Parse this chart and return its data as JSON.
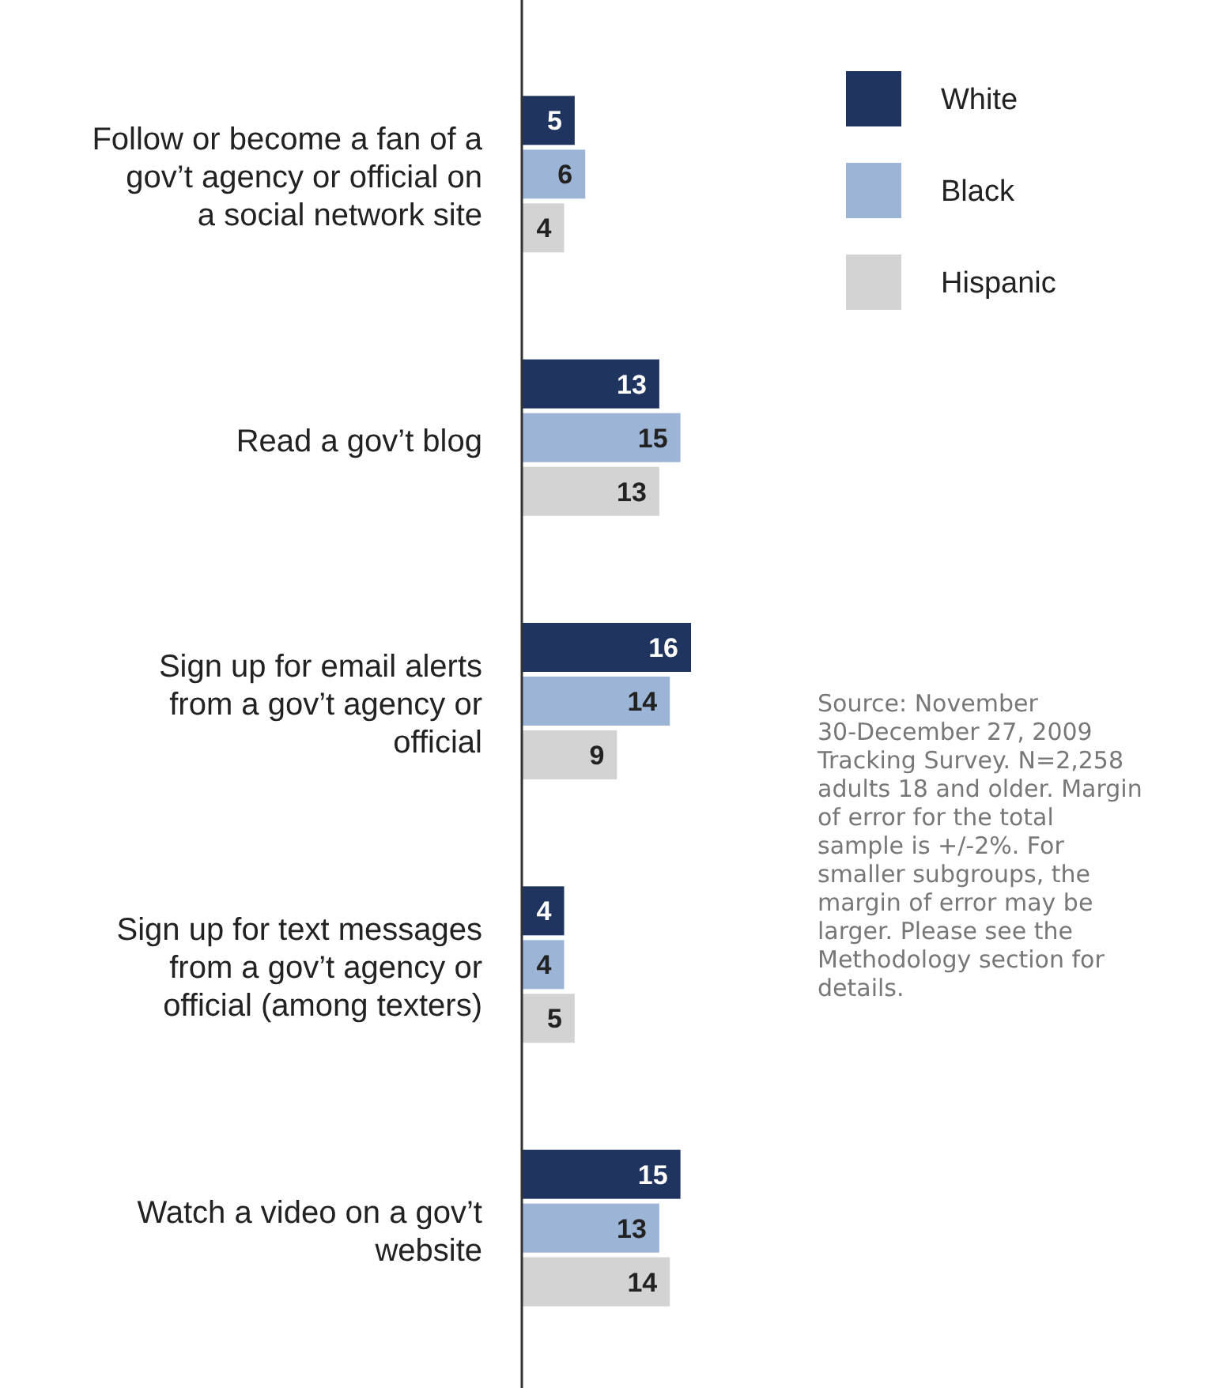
{
  "chart_data": {
    "type": "bar",
    "orientation": "horizontal",
    "categories": [
      "Follow or become a fan of a gov’t agency or official on a social network site",
      "Read a gov’t blog",
      "Sign up for email alerts from a gov’t agency or official",
      "Sign up for text messages from a gov’t agency or official (among texters)",
      "Watch a video on a gov’t website"
    ],
    "series": [
      {
        "name": "White",
        "color": "#1f3560",
        "values": [
          5,
          13,
          16,
          4,
          15
        ]
      },
      {
        "name": "Black",
        "color": "#9cb4d6",
        "values": [
          6,
          15,
          14,
          4,
          13
        ]
      },
      {
        "name": "Hispanic",
        "color": "#d3d3d3",
        "values": [
          4,
          13,
          9,
          5,
          14
        ]
      }
    ],
    "data_labels": true,
    "legend": "top right",
    "annotations": [
      "Source: November 30-December 27, 2009 Tracking Survey. N=2,258 adults 18 and older. Margin of error for the total sample is +/-2%. For smaller subgroups, the margin of error may be larger. Please see the Methodology section for details."
    ]
  }
}
